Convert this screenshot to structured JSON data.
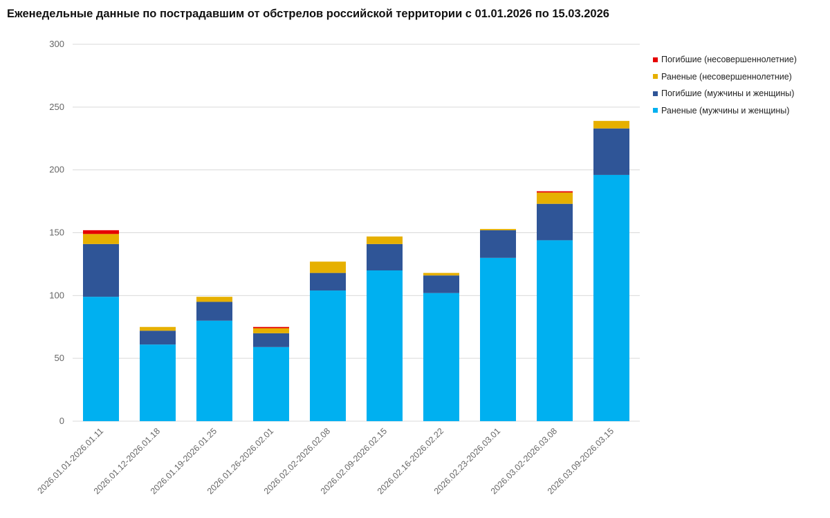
{
  "chart_data": {
    "type": "bar",
    "stacked": true,
    "title": "Еженедельные данные по пострадавшим от обстрелов российской территории с 01.01.2026 по 15.03.2026",
    "xlabel": "",
    "ylabel": "",
    "ylim": [
      0,
      300
    ],
    "yticks": [
      "0",
      "50",
      "100",
      "150",
      "200",
      "250",
      "300"
    ],
    "grid": true,
    "legend_position": "top-right",
    "categories": [
      "2026.01.01-2026.01.11",
      "2026.01.12-2026.01.18",
      "2026.01.19-2026.01.25",
      "2026.01.26-2026.02.01",
      "2026.02.02-2026.02.08",
      "2026.02.09-2026.02.15",
      "2026.02.16-2026.02.22",
      "2026.02.23-2026.03.01",
      "2026.03.02-2026.03.08",
      "2026.03.09-2026.03.15"
    ],
    "series": [
      {
        "name": "Раненые (мужчины и женщины)",
        "color": "#00b0f0",
        "values": [
          99,
          61,
          80,
          59,
          104,
          120,
          102,
          130,
          144,
          196
        ]
      },
      {
        "name": "Погибшие (мужчины и женщины)",
        "color": "#2f5597",
        "values": [
          42,
          11,
          15,
          11,
          14,
          21,
          14,
          22,
          29,
          37
        ]
      },
      {
        "name": "Раненые (несовершеннолетние)",
        "color": "#e6b000",
        "values": [
          8,
          3,
          4,
          4,
          9,
          6,
          2,
          1,
          9,
          6
        ]
      },
      {
        "name": "Погибшие (несовершеннолетние)",
        "color": "#e60000",
        "values": [
          3,
          0,
          0,
          1,
          0,
          0,
          0,
          0,
          1,
          0
        ]
      }
    ],
    "legend_order": [
      3,
      2,
      1,
      0
    ]
  }
}
